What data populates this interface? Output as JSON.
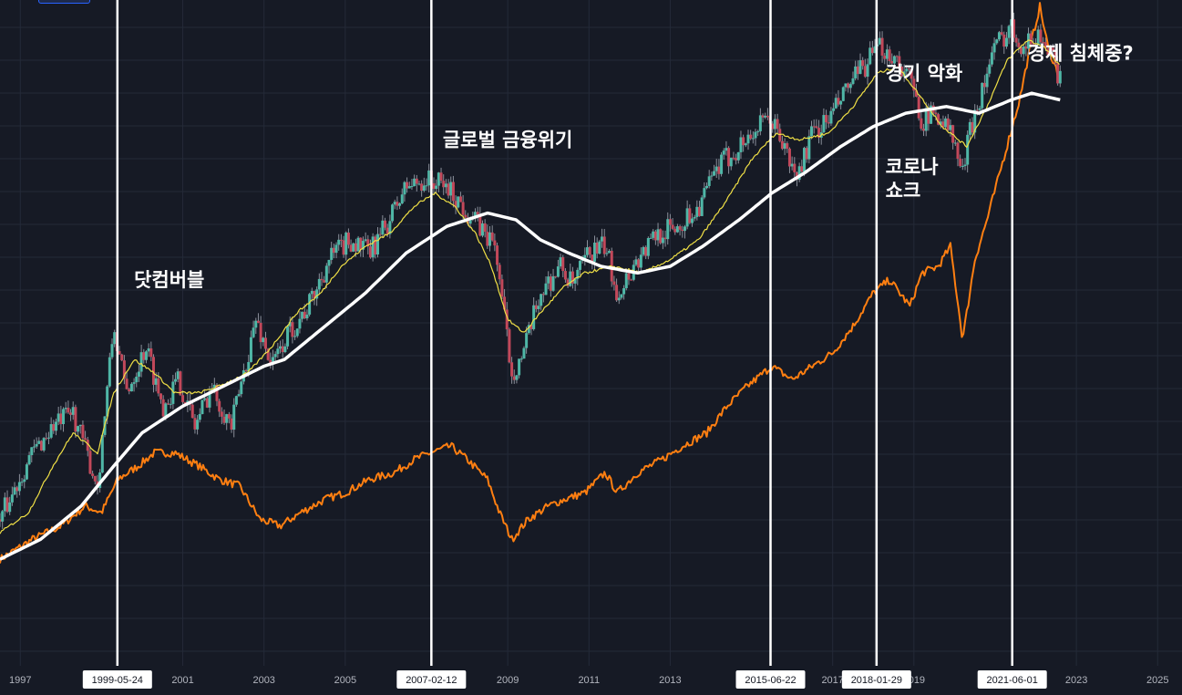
{
  "chart_data": {
    "type": "line",
    "x_range": [
      1996.5,
      2025.6
    ],
    "x_ticks": [
      "1997",
      "2001",
      "2003",
      "2005",
      "2009",
      "2011",
      "2013",
      "2017",
      "2019",
      "2023",
      "2025"
    ],
    "x_tick_values": [
      1997,
      2001,
      2003,
      2005,
      2009,
      2011,
      2013,
      2017,
      2019,
      2023,
      2025
    ],
    "grid": true,
    "markers": [
      {
        "label": "1999-05-24",
        "x": 1999.39
      },
      {
        "label": "2007-02-12",
        "x": 2007.12
      },
      {
        "label": "2015-06-22",
        "x": 2015.47
      },
      {
        "label": "2018-01-29",
        "x": 2018.08
      },
      {
        "label": "2021-06-01",
        "x": 2021.42
      }
    ],
    "annotations": [
      {
        "lines": [
          "닷컴버블"
        ],
        "x": 1999.8,
        "y": 0.57
      },
      {
        "lines": [
          "글로벌 금융위기"
        ],
        "x": 2007.4,
        "y": 0.78
      },
      {
        "lines": [
          "경기 악화"
        ],
        "x": 2018.3,
        "y": 0.88
      },
      {
        "lines": [
          "경제 침체중?"
        ],
        "x": 2021.8,
        "y": 0.91
      },
      {
        "lines": [
          "코로나",
          "쇼크"
        ],
        "x": 2018.3,
        "y": 0.74
      }
    ],
    "series": [
      {
        "color": "#7fd3c3",
        "style": "candles",
        "points": [
          [
            1996.5,
            0.22
          ],
          [
            1997.2,
            0.31
          ],
          [
            1997.8,
            0.36
          ],
          [
            1998.3,
            0.38
          ],
          [
            1998.9,
            0.27
          ],
          [
            1999.3,
            0.51
          ],
          [
            1999.6,
            0.41
          ],
          [
            2000.1,
            0.48
          ],
          [
            2000.5,
            0.39
          ],
          [
            2000.9,
            0.43
          ],
          [
            2001.3,
            0.36
          ],
          [
            2001.7,
            0.42
          ],
          [
            2002.2,
            0.36
          ],
          [
            2002.8,
            0.52
          ],
          [
            2003.2,
            0.45
          ],
          [
            2003.6,
            0.5
          ],
          [
            2004.1,
            0.54
          ],
          [
            2004.6,
            0.61
          ],
          [
            2005.1,
            0.64
          ],
          [
            2005.6,
            0.62
          ],
          [
            2006.0,
            0.66
          ],
          [
            2006.5,
            0.72
          ],
          [
            2007.0,
            0.73
          ],
          [
            2007.5,
            0.72
          ],
          [
            2007.9,
            0.69
          ],
          [
            2008.3,
            0.66
          ],
          [
            2008.7,
            0.63
          ],
          [
            2008.9,
            0.53
          ],
          [
            2009.1,
            0.44
          ],
          [
            2009.4,
            0.47
          ],
          [
            2009.8,
            0.56
          ],
          [
            2010.3,
            0.6
          ],
          [
            2010.6,
            0.57
          ],
          [
            2011.0,
            0.62
          ],
          [
            2011.4,
            0.63
          ],
          [
            2011.7,
            0.56
          ],
          [
            2012.2,
            0.61
          ],
          [
            2012.7,
            0.65
          ],
          [
            2013.2,
            0.66
          ],
          [
            2013.7,
            0.69
          ],
          [
            2014.2,
            0.75
          ],
          [
            2014.7,
            0.78
          ],
          [
            2015.2,
            0.81
          ],
          [
            2015.5,
            0.82
          ],
          [
            2015.8,
            0.78
          ],
          [
            2016.1,
            0.73
          ],
          [
            2016.5,
            0.8
          ],
          [
            2016.9,
            0.82
          ],
          [
            2017.4,
            0.87
          ],
          [
            2017.9,
            0.91
          ],
          [
            2018.2,
            0.93
          ],
          [
            2018.6,
            0.91
          ],
          [
            2018.9,
            0.88
          ],
          [
            2019.2,
            0.82
          ],
          [
            2019.6,
            0.83
          ],
          [
            2019.9,
            0.8
          ],
          [
            2020.2,
            0.74
          ],
          [
            2020.4,
            0.81
          ],
          [
            2020.7,
            0.87
          ],
          [
            2021.0,
            0.93
          ],
          [
            2021.4,
            0.96
          ],
          [
            2021.7,
            0.93
          ],
          [
            2022.1,
            0.95
          ],
          [
            2022.4,
            0.91
          ],
          [
            2022.6,
            0.88
          ]
        ]
      },
      {
        "color": "#f0e046",
        "style": "line",
        "points": [
          [
            1996.5,
            0.2
          ],
          [
            1997.2,
            0.23
          ],
          [
            1997.8,
            0.3
          ],
          [
            1998.3,
            0.35
          ],
          [
            1998.9,
            0.32
          ],
          [
            1999.3,
            0.41
          ],
          [
            1999.8,
            0.46
          ],
          [
            2000.3,
            0.44
          ],
          [
            2000.8,
            0.41
          ],
          [
            2001.4,
            0.41
          ],
          [
            2001.9,
            0.42
          ],
          [
            2002.6,
            0.44
          ],
          [
            2003.2,
            0.48
          ],
          [
            2003.8,
            0.53
          ],
          [
            2004.4,
            0.56
          ],
          [
            2004.9,
            0.6
          ],
          [
            2005.5,
            0.63
          ],
          [
            2006.1,
            0.65
          ],
          [
            2006.7,
            0.69
          ],
          [
            2007.2,
            0.71
          ],
          [
            2007.7,
            0.69
          ],
          [
            2008.2,
            0.65
          ],
          [
            2008.6,
            0.6
          ],
          [
            2009.0,
            0.52
          ],
          [
            2009.4,
            0.5
          ],
          [
            2009.8,
            0.53
          ],
          [
            2010.4,
            0.57
          ],
          [
            2010.9,
            0.59
          ],
          [
            2011.6,
            0.6
          ],
          [
            2012.3,
            0.59
          ],
          [
            2013.0,
            0.61
          ],
          [
            2013.7,
            0.64
          ],
          [
            2014.4,
            0.7
          ],
          [
            2015.0,
            0.76
          ],
          [
            2015.6,
            0.8
          ],
          [
            2016.2,
            0.79
          ],
          [
            2016.9,
            0.8
          ],
          [
            2017.5,
            0.84
          ],
          [
            2018.1,
            0.89
          ],
          [
            2018.6,
            0.9
          ],
          [
            2019.1,
            0.86
          ],
          [
            2019.7,
            0.81
          ],
          [
            2020.3,
            0.78
          ],
          [
            2020.8,
            0.84
          ],
          [
            2021.3,
            0.91
          ],
          [
            2021.8,
            0.94
          ],
          [
            2022.2,
            0.93
          ],
          [
            2022.6,
            0.9
          ]
        ]
      },
      {
        "color": "#ffffff",
        "style": "thick",
        "points": [
          [
            1996.5,
            0.16
          ],
          [
            1997.5,
            0.19
          ],
          [
            1998.5,
            0.24
          ],
          [
            1999.3,
            0.3
          ],
          [
            2000.0,
            0.35
          ],
          [
            2001.0,
            0.39
          ],
          [
            2002.0,
            0.42
          ],
          [
            2003.0,
            0.45
          ],
          [
            2003.5,
            0.46
          ],
          [
            2004.5,
            0.51
          ],
          [
            2005.5,
            0.56
          ],
          [
            2006.5,
            0.62
          ],
          [
            2007.5,
            0.66
          ],
          [
            2008.5,
            0.68
          ],
          [
            2009.2,
            0.67
          ],
          [
            2009.8,
            0.64
          ],
          [
            2010.5,
            0.62
          ],
          [
            2011.3,
            0.6
          ],
          [
            2012.2,
            0.59
          ],
          [
            2013.0,
            0.6
          ],
          [
            2013.8,
            0.63
          ],
          [
            2014.7,
            0.67
          ],
          [
            2015.5,
            0.71
          ],
          [
            2016.3,
            0.74
          ],
          [
            2017.2,
            0.78
          ],
          [
            2018.0,
            0.81
          ],
          [
            2018.8,
            0.83
          ],
          [
            2019.8,
            0.84
          ],
          [
            2020.6,
            0.83
          ],
          [
            2021.4,
            0.85
          ],
          [
            2021.9,
            0.86
          ],
          [
            2022.6,
            0.85
          ]
        ]
      },
      {
        "color": "#ff7f11",
        "style": "line",
        "points": [
          [
            1996.5,
            0.16
          ],
          [
            1997.3,
            0.19
          ],
          [
            1998.0,
            0.21
          ],
          [
            1998.6,
            0.24
          ],
          [
            1999.0,
            0.23
          ],
          [
            1999.4,
            0.28
          ],
          [
            1999.9,
            0.3
          ],
          [
            2000.3,
            0.32
          ],
          [
            2000.8,
            0.32
          ],
          [
            2001.4,
            0.3
          ],
          [
            2001.9,
            0.28
          ],
          [
            2002.4,
            0.27
          ],
          [
            2002.9,
            0.22
          ],
          [
            2003.4,
            0.21
          ],
          [
            2003.9,
            0.23
          ],
          [
            2004.5,
            0.25
          ],
          [
            2005.0,
            0.26
          ],
          [
            2005.6,
            0.28
          ],
          [
            2006.2,
            0.29
          ],
          [
            2006.7,
            0.31
          ],
          [
            2007.1,
            0.32
          ],
          [
            2007.6,
            0.33
          ],
          [
            2008.0,
            0.31
          ],
          [
            2008.5,
            0.28
          ],
          [
            2008.8,
            0.23
          ],
          [
            2009.1,
            0.19
          ],
          [
            2009.5,
            0.22
          ],
          [
            2010.0,
            0.24
          ],
          [
            2010.4,
            0.25
          ],
          [
            2010.9,
            0.26
          ],
          [
            2011.4,
            0.29
          ],
          [
            2011.7,
            0.26
          ],
          [
            2012.2,
            0.29
          ],
          [
            2012.8,
            0.31
          ],
          [
            2013.3,
            0.33
          ],
          [
            2013.9,
            0.35
          ],
          [
            2014.4,
            0.39
          ],
          [
            2014.9,
            0.42
          ],
          [
            2015.5,
            0.45
          ],
          [
            2016.0,
            0.43
          ],
          [
            2016.5,
            0.45
          ],
          [
            2017.0,
            0.47
          ],
          [
            2017.5,
            0.51
          ],
          [
            2018.0,
            0.56
          ],
          [
            2018.4,
            0.58
          ],
          [
            2018.9,
            0.54
          ],
          [
            2019.2,
            0.59
          ],
          [
            2019.6,
            0.6
          ],
          [
            2019.9,
            0.63
          ],
          [
            2020.2,
            0.49
          ],
          [
            2020.5,
            0.61
          ],
          [
            2020.8,
            0.67
          ],
          [
            2021.2,
            0.76
          ],
          [
            2021.6,
            0.85
          ],
          [
            2021.9,
            0.94
          ],
          [
            2022.1,
            0.99
          ],
          [
            2022.3,
            0.93
          ],
          [
            2022.6,
            0.88
          ]
        ]
      }
    ]
  },
  "ui": {
    "background": "#161a25",
    "grid_color": "#242a38",
    "marker_line_color": "#ffffff"
  }
}
